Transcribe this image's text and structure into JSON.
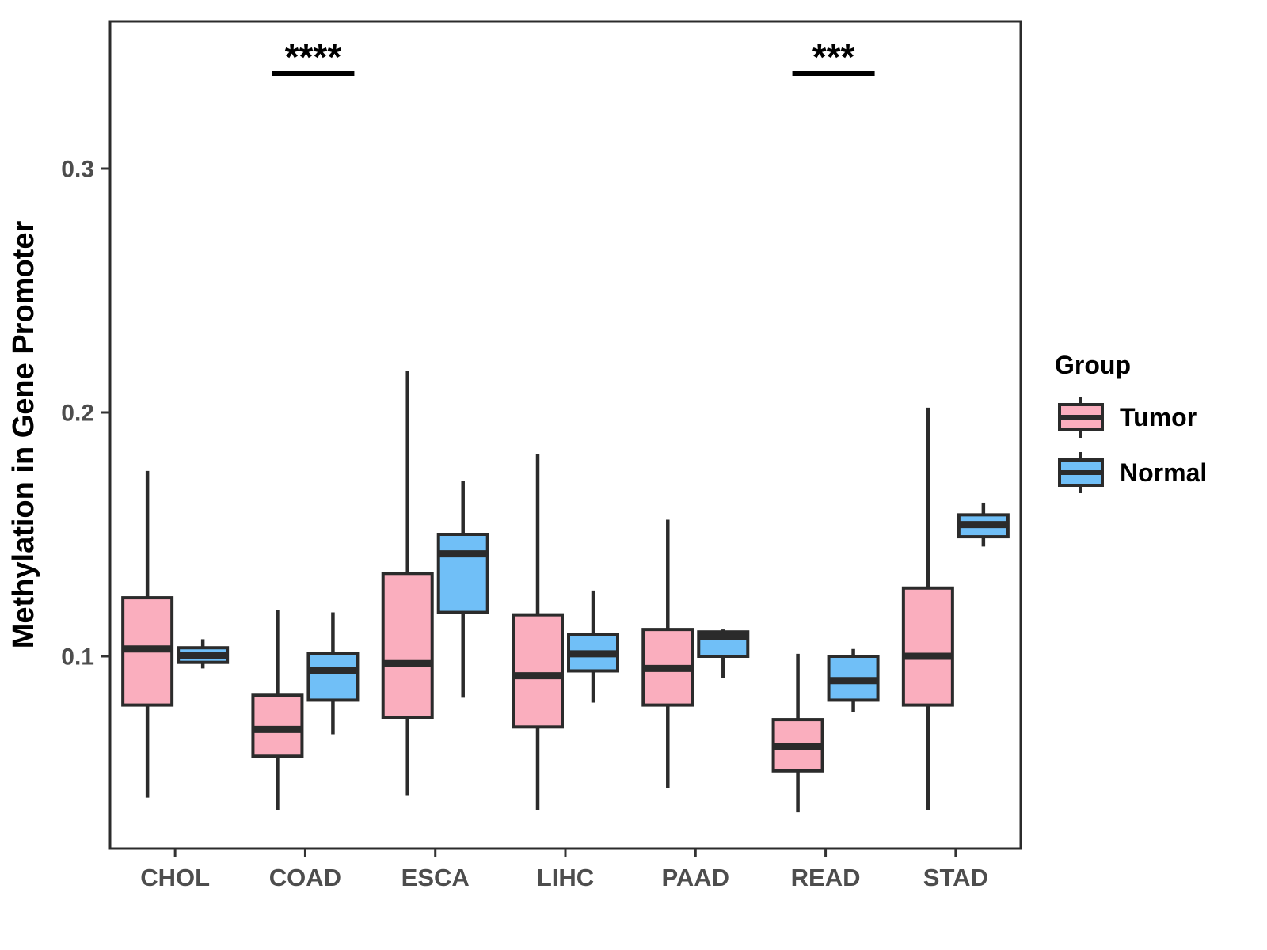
{
  "axes": {
    "y_label": "Methylation in Gene Promoter",
    "y_ticks": [
      "0.1",
      "0.2",
      "0.3"
    ],
    "y_tick_values": [
      0.1,
      0.2,
      0.3
    ],
    "y_domain": [
      0.021,
      0.361
    ],
    "x_categories": [
      "CHOL",
      "COAD",
      "ESCA",
      "LIHC",
      "PAAD",
      "READ",
      "STAD"
    ]
  },
  "legend": {
    "title": "Group",
    "entries": [
      {
        "label": "Tumor",
        "color": "#FAAEBE"
      },
      {
        "label": "Normal",
        "color": "#70BFF7"
      }
    ]
  },
  "style": {
    "box_outline": "#2B2B2B",
    "axis_text_color": "#4D4D4D",
    "title_text_color": "#000000",
    "panel_border_color": "#2B2B2B",
    "background": "#FFFFFF"
  },
  "chart_data": {
    "type": "boxplot",
    "title": "",
    "xlabel": "",
    "ylabel": "Methylation in Gene Promoter",
    "categories": [
      "CHOL",
      "COAD",
      "ESCA",
      "LIHC",
      "PAAD",
      "READ",
      "STAD"
    ],
    "ylim": [
      0.021,
      0.361
    ],
    "y_ticks": [
      0.1,
      0.2,
      0.3
    ],
    "grid": false,
    "legend_position": "right",
    "series": [
      {
        "name": "Tumor",
        "color": "#FAAEBE",
        "boxes": [
          {
            "category": "CHOL",
            "min": 0.042,
            "q1": 0.08,
            "median": 0.103,
            "q3": 0.124,
            "max": 0.176
          },
          {
            "category": "COAD",
            "min": 0.037,
            "q1": 0.059,
            "median": 0.07,
            "q3": 0.084,
            "max": 0.119
          },
          {
            "category": "ESCA",
            "min": 0.043,
            "q1": 0.075,
            "median": 0.097,
            "q3": 0.134,
            "max": 0.217
          },
          {
            "category": "LIHC",
            "min": 0.037,
            "q1": 0.071,
            "median": 0.092,
            "q3": 0.117,
            "max": 0.183
          },
          {
            "category": "PAAD",
            "min": 0.046,
            "q1": 0.08,
            "median": 0.095,
            "q3": 0.111,
            "max": 0.156
          },
          {
            "category": "READ",
            "min": 0.036,
            "q1": 0.053,
            "median": 0.063,
            "q3": 0.074,
            "max": 0.101
          },
          {
            "category": "STAD",
            "min": 0.037,
            "q1": 0.08,
            "median": 0.1,
            "q3": 0.128,
            "max": 0.202
          }
        ]
      },
      {
        "name": "Normal",
        "color": "#70BFF7",
        "boxes": [
          {
            "category": "CHOL",
            "min": 0.095,
            "q1": 0.0975,
            "median": 0.1005,
            "q3": 0.1035,
            "max": 0.107
          },
          {
            "category": "COAD",
            "min": 0.068,
            "q1": 0.082,
            "median": 0.094,
            "q3": 0.101,
            "max": 0.118
          },
          {
            "category": "ESCA",
            "min": 0.083,
            "q1": 0.118,
            "median": 0.142,
            "q3": 0.15,
            "max": 0.172
          },
          {
            "category": "LIHC",
            "min": 0.081,
            "q1": 0.094,
            "median": 0.101,
            "q3": 0.109,
            "max": 0.127
          },
          {
            "category": "PAAD",
            "min": 0.091,
            "q1": 0.1,
            "median": 0.108,
            "q3": 0.11,
            "max": 0.111
          },
          {
            "category": "READ",
            "min": 0.077,
            "q1": 0.082,
            "median": 0.09,
            "q3": 0.1,
            "max": 0.103
          },
          {
            "category": "STAD",
            "min": 0.145,
            "q1": 0.149,
            "median": 0.154,
            "q3": 0.158,
            "max": 0.163
          }
        ]
      }
    ],
    "annotations": [
      {
        "category": "COAD",
        "label": "****"
      },
      {
        "category": "READ",
        "label": "***"
      }
    ]
  }
}
